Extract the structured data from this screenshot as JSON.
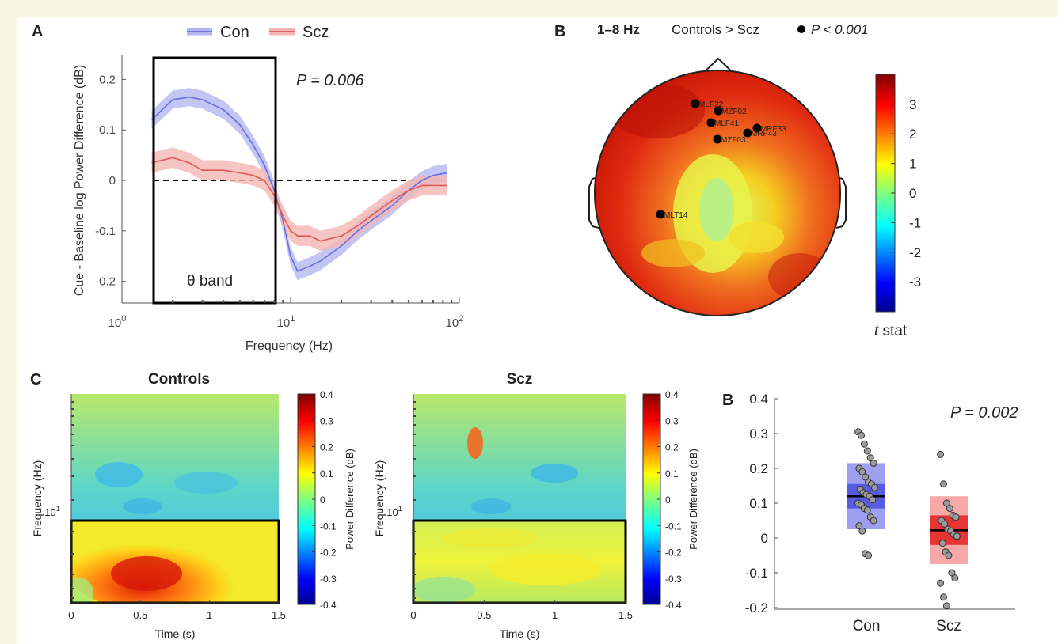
{
  "colors": {
    "con": "#6a6ee0",
    "con_band": "#b4b6f0",
    "scz": "#e05a5a",
    "scz_band": "#f4b6b2"
  },
  "panel_a": {
    "label": "A",
    "legend": [
      "Con",
      "Scz"
    ],
    "p_value": "P = 0.006",
    "band_label": "θ band",
    "ylabel": "Cue - Baseline log Power Difference (dB)",
    "xlabel": "Frequency (Hz)",
    "yticks": [
      "0.2",
      "0.1",
      "0",
      "-0.1",
      "-0.2"
    ],
    "xticks_base": [
      "10",
      "10",
      "10"
    ],
    "xticks_exp": [
      "0",
      "1",
      "2"
    ]
  },
  "panel_b": {
    "label": "B",
    "header_band": "1–8 Hz",
    "header_contrast": "Controls > Scz",
    "header_p": "P < 0.001",
    "sensors": [
      "MLF22",
      "MZF02",
      "MLF41",
      "MRF33",
      "MRF43",
      "MZF03",
      "MLT14"
    ],
    "cbar_ticks": [
      "3",
      "2",
      "1",
      "0",
      "-1",
      "-2",
      "-3"
    ],
    "cbar_label": "t stat"
  },
  "panel_c": {
    "label": "C",
    "titles": [
      "Controls",
      "Scz"
    ],
    "ylabel": "Frequency (Hz)",
    "xlabel": "Time (s)",
    "ytick": "10",
    "ytick_exp": "1",
    "xticks": [
      "0",
      "0.5",
      "1",
      "1.5"
    ],
    "cbar_ticks": [
      "0.4",
      "0.3",
      "0.2",
      "0.1",
      "0",
      "-0.1",
      "-0.2",
      "-0.3",
      "-0.4"
    ],
    "cbar_label": "Power Difference (dB)"
  },
  "panel_d": {
    "label": "B",
    "p_value": "P = 0.002",
    "yticks": [
      "0.4",
      "0.3",
      "0.2",
      "0.1",
      "0",
      "-0.1",
      "-0.2"
    ],
    "categories": [
      "Con",
      "Scz"
    ]
  },
  "chart_data": [
    {
      "type": "line",
      "xlabel": "Frequency (Hz)",
      "ylabel": "Cue - Baseline log Power Difference (dB)",
      "x_scale": "log",
      "xlim": [
        1,
        100
      ],
      "ylim": [
        -0.25,
        0.25
      ],
      "series": [
        {
          "name": "Con",
          "x": [
            1.5,
            2,
            2.5,
            3,
            4,
            5,
            6,
            7,
            8,
            9,
            10,
            11,
            13,
            15,
            20,
            25,
            30,
            40,
            50,
            60,
            70,
            85
          ],
          "values": [
            0.12,
            0.16,
            0.165,
            0.16,
            0.14,
            0.11,
            0.07,
            0.03,
            -0.02,
            -0.08,
            -0.15,
            -0.18,
            -0.17,
            -0.16,
            -0.13,
            -0.1,
            -0.08,
            -0.05,
            -0.02,
            0.0,
            0.01,
            0.015
          ]
        },
        {
          "name": "Scz",
          "x": [
            1.5,
            2,
            2.5,
            3,
            4,
            5,
            6,
            7,
            8,
            9,
            10,
            11,
            13,
            15,
            20,
            25,
            30,
            40,
            50,
            60,
            70,
            85
          ],
          "values": [
            0.035,
            0.045,
            0.035,
            0.02,
            0.02,
            0.015,
            0.01,
            0.0,
            -0.03,
            -0.07,
            -0.1,
            -0.11,
            -0.11,
            -0.12,
            -0.11,
            -0.09,
            -0.07,
            -0.04,
            -0.02,
            -0.01,
            -0.01,
            -0.01
          ]
        }
      ],
      "annotations": [
        "θ band",
        "P = 0.006"
      ]
    },
    {
      "type": "heatmap",
      "title": "Controls",
      "xlabel": "Time (s)",
      "ylabel": "Frequency (Hz)",
      "xlim": [
        0,
        1.5
      ],
      "clim": [
        -0.4,
        0.4
      ]
    },
    {
      "type": "heatmap",
      "title": "Scz",
      "xlabel": "Time (s)",
      "ylabel": "Frequency (Hz)",
      "xlim": [
        0,
        1.5
      ],
      "clim": [
        -0.4,
        0.4
      ]
    },
    {
      "type": "scatter",
      "categories": [
        "Con",
        "Scz"
      ],
      "ylim": [
        -0.2,
        0.4
      ],
      "groups": [
        {
          "name": "Con",
          "mean": 0.12,
          "sem_low": 0.085,
          "sem_high": 0.155,
          "sd_low": 0.025,
          "sd_high": 0.215,
          "points": [
            0.305,
            0.295,
            0.27,
            0.25,
            0.23,
            0.215,
            0.2,
            0.19,
            0.175,
            0.16,
            0.155,
            0.145,
            0.14,
            0.13,
            0.125,
            0.12,
            0.11,
            0.1,
            0.095,
            0.085,
            0.08,
            0.06,
            0.05,
            0.035,
            0.02,
            -0.045,
            -0.05
          ]
        },
        {
          "name": "Scz",
          "mean": 0.022,
          "sem_low": -0.02,
          "sem_high": 0.065,
          "sd_low": -0.075,
          "sd_high": 0.12,
          "points": [
            0.24,
            0.155,
            0.1,
            0.085,
            0.065,
            0.06,
            0.05,
            0.04,
            0.025,
            0.02,
            0.01,
            0.005,
            -0.015,
            -0.04,
            -0.05,
            -0.1,
            -0.115,
            -0.13,
            -0.17,
            -0.195
          ]
        }
      ]
    }
  ]
}
